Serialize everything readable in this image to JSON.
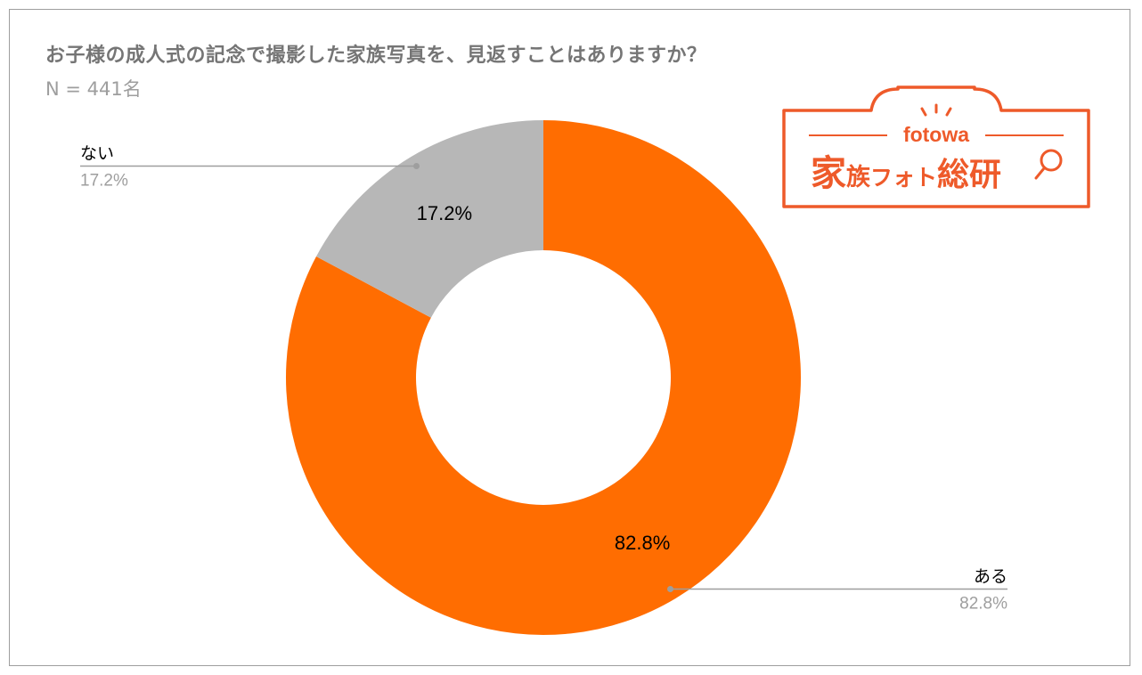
{
  "title": "お子様の成人式の記念で撮影した家族写真を、見返すことはありますか？",
  "subtitle": "N = 441名",
  "logo": {
    "brand": "fotowa",
    "name_big1": "家",
    "name_small1": "族",
    "name_mid": "フォト",
    "name_big2": "総研",
    "color": "#ee5a2a"
  },
  "chart_data": {
    "type": "pie",
    "donut": true,
    "categories": [
      "ある",
      "ない"
    ],
    "values": [
      82.8,
      17.2
    ],
    "value_labels": [
      "82.8%",
      "17.2%"
    ],
    "colors": [
      "#ff6d01",
      "#b7b7b7"
    ],
    "legend": "callouts"
  }
}
